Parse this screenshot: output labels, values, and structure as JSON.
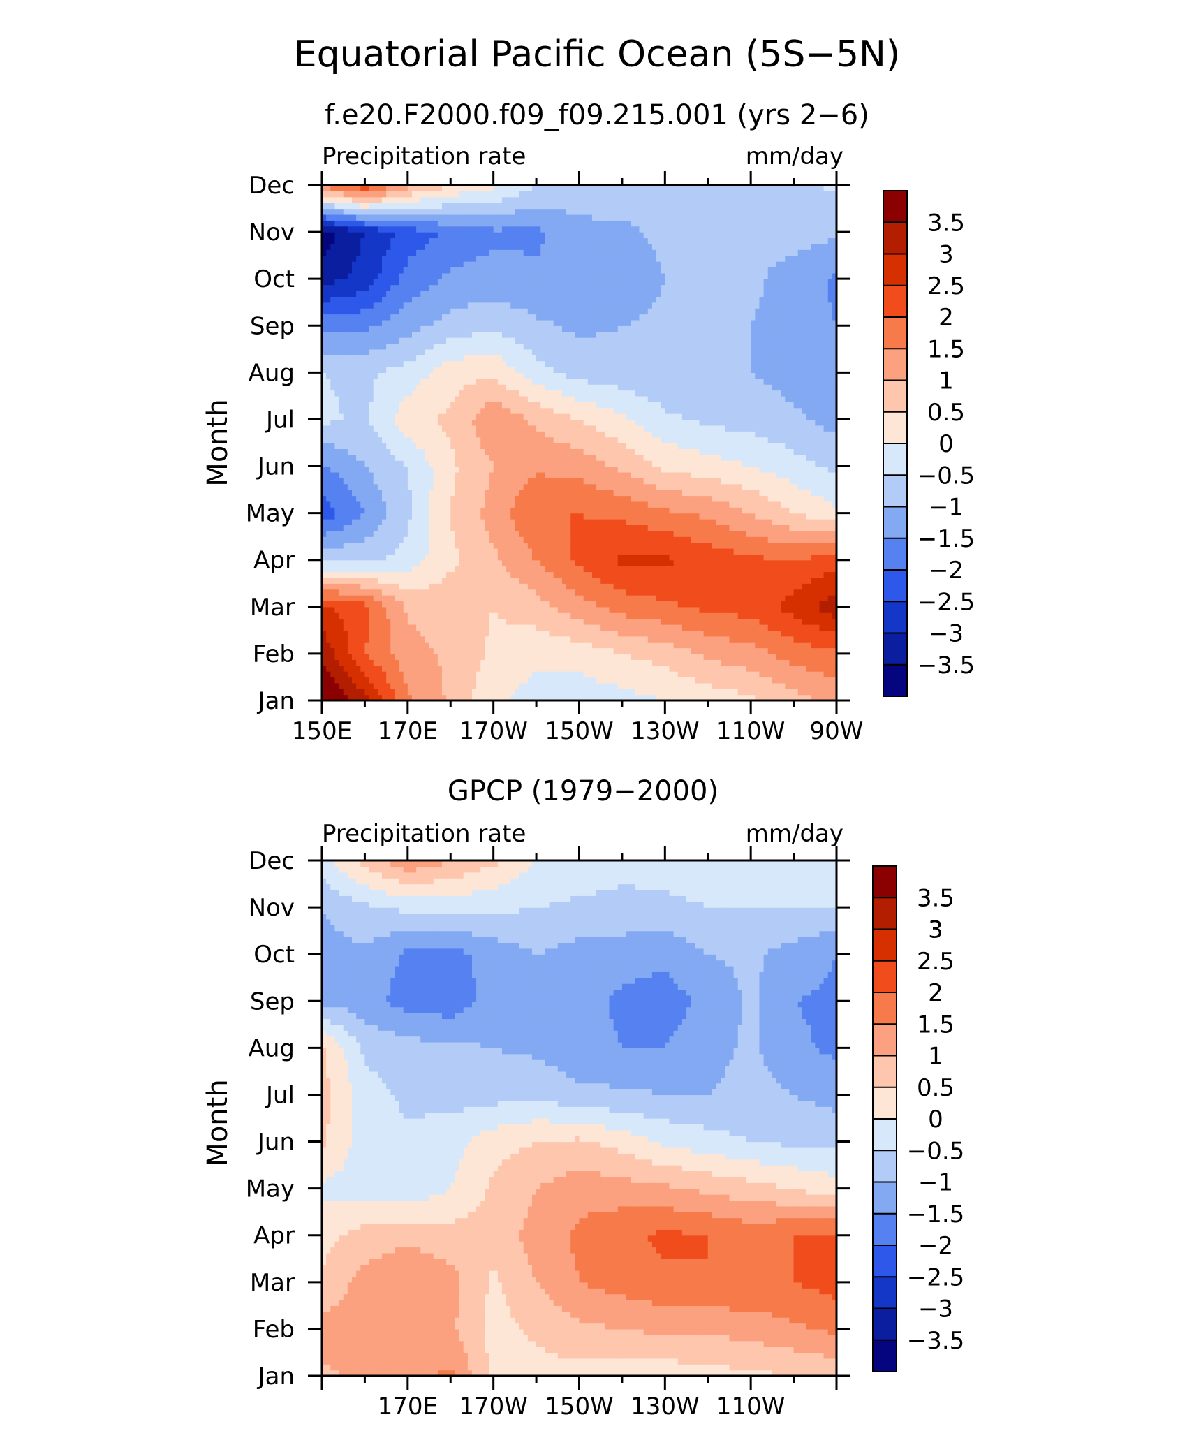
{
  "figure": {
    "title": "Equatorial Pacific Ocean (5S−5N)"
  },
  "colorbar": {
    "labels": [
      "3.5",
      "3",
      "2.5",
      "2",
      "1.5",
      "1",
      "0.5",
      "0",
      "−0.5",
      "−1",
      "−1.5",
      "−2",
      "−2.5",
      "−3",
      "−3.5"
    ],
    "colors": [
      "#8b0000",
      "#b31e00",
      "#d63000",
      "#f04c1c",
      "#f77a4a",
      "#fba17f",
      "#fdc6ad",
      "#fde6d6",
      "#d8e8fb",
      "#b2ccf7",
      "#83a9f3",
      "#5582f0",
      "#2d58ea",
      "#1437c8",
      "#0b1ea0",
      "#05057f"
    ]
  },
  "chart_data": [
    {
      "type": "heatmap",
      "title": "f.e20.F2000.f09_f09.215.001 (yrs 2−6)",
      "left_label": "Precipitation rate",
      "right_label": "mm/day",
      "ylabel": "Month",
      "xlabel": "",
      "x_tick_labels": [
        "150E",
        "170E",
        "170W",
        "150W",
        "130W",
        "110W",
        "90W"
      ],
      "x_tick_lons": [
        150,
        170,
        190,
        210,
        230,
        250,
        270
      ],
      "y_tick_labels": [
        "Jan",
        "Feb",
        "Mar",
        "Apr",
        "May",
        "Jun",
        "Jul",
        "Aug",
        "Sep",
        "Oct",
        "Nov",
        "Dec"
      ],
      "xlim": [
        150,
        270
      ],
      "ylim": [
        1,
        12
      ],
      "levels": [
        -3.5,
        -3,
        -2.5,
        -2,
        -1.5,
        -1,
        -0.5,
        0,
        0.5,
        1,
        1.5,
        2,
        2.5,
        3,
        3.5
      ],
      "grid_lons": [
        150,
        160,
        170,
        180,
        190,
        200,
        210,
        220,
        230,
        240,
        250,
        260,
        270
      ],
      "values": [
        [
          4.2,
          3.2,
          1.6,
          0.9,
          0.1,
          -0.2,
          -0.3,
          -0.2,
          0.0,
          0.2,
          0.4,
          0.8,
          1.2
        ],
        [
          3.4,
          2.0,
          1.2,
          0.9,
          0.4,
          0.1,
          0.2,
          0.5,
          0.7,
          1.1,
          1.3,
          1.7,
          1.9
        ],
        [
          2.6,
          2.2,
          0.9,
          0.8,
          0.5,
          0.8,
          1.3,
          1.7,
          1.9,
          2.1,
          2.2,
          2.7,
          3.3
        ],
        [
          -0.6,
          -0.6,
          -0.3,
          0.4,
          0.9,
          1.5,
          2.1,
          2.6,
          2.6,
          2.3,
          2.1,
          2.0,
          2.3
        ],
        [
          -2.3,
          -1.5,
          -0.6,
          0.5,
          1.2,
          2.0,
          2.0,
          1.9,
          1.6,
          1.4,
          1.0,
          0.5,
          0.1
        ],
        [
          -1.6,
          -1.0,
          -0.5,
          0.4,
          1.0,
          1.4,
          1.3,
          0.9,
          0.4,
          0.2,
          0.0,
          -0.3,
          -0.6
        ],
        [
          -0.4,
          -0.6,
          0.3,
          0.6,
          1.4,
          0.9,
          0.5,
          0.1,
          -0.4,
          -0.6,
          -0.7,
          -0.9,
          -1.2
        ],
        [
          -0.5,
          -0.6,
          -0.3,
          0.3,
          0.4,
          -0.3,
          -0.7,
          -0.8,
          -0.9,
          -0.9,
          -1.0,
          -1.2,
          -1.3
        ],
        [
          -1.7,
          -1.6,
          -1.2,
          -0.8,
          -0.6,
          -0.9,
          -1.1,
          -1.0,
          -0.9,
          -0.9,
          -1.0,
          -1.2,
          -1.5
        ],
        [
          -3.2,
          -2.8,
          -1.8,
          -1.4,
          -1.3,
          -1.4,
          -1.4,
          -1.3,
          -1.0,
          -0.9,
          -0.9,
          -1.2,
          -1.6
        ],
        [
          -3.8,
          -3.0,
          -2.3,
          -1.9,
          -1.6,
          -1.6,
          -1.2,
          -1.1,
          -0.9,
          -0.8,
          -0.9,
          -0.8,
          -0.9
        ],
        [
          1.7,
          2.4,
          1.2,
          0.5,
          0.1,
          -0.5,
          -0.6,
          -0.7,
          -0.8,
          -0.7,
          -0.8,
          -0.7,
          -0.4
        ]
      ]
    },
    {
      "type": "heatmap",
      "title": "GPCP (1979−2000)",
      "left_label": "Precipitation rate",
      "right_label": "mm/day",
      "ylabel": "Month",
      "xlabel": "",
      "x_tick_labels": [
        "170E",
        "170W",
        "150W",
        "130W",
        "110W"
      ],
      "x_tick_lons": [
        170,
        190,
        210,
        230,
        250
      ],
      "y_tick_labels": [
        "Jan",
        "Feb",
        "Mar",
        "Apr",
        "May",
        "Jun",
        "Jul",
        "Aug",
        "Sep",
        "Oct",
        "Nov",
        "Dec"
      ],
      "xlim": [
        150,
        270
      ],
      "ylim": [
        1,
        12
      ],
      "levels": [
        -3.5,
        -3,
        -2.5,
        -2,
        -1.5,
        -1,
        -0.5,
        0,
        0.5,
        1,
        1.5,
        2,
        2.5,
        3,
        3.5
      ],
      "grid_lons": [
        150,
        160,
        170,
        180,
        190,
        200,
        210,
        220,
        230,
        240,
        250,
        260,
        270
      ],
      "values": [
        [
          0.9,
          1.1,
          1.3,
          1.6,
          0.4,
          0.3,
          0.3,
          0.2,
          0.2,
          0.3,
          0.4,
          0.5,
          0.6
        ],
        [
          1.2,
          1.3,
          1.2,
          1.1,
          0.3,
          0.6,
          0.9,
          1.0,
          1.1,
          1.1,
          1.2,
          1.4,
          1.6
        ],
        [
          0.6,
          1.2,
          1.4,
          1.2,
          0.4,
          1.0,
          1.5,
          1.7,
          1.9,
          2.0,
          1.9,
          2.0,
          2.2
        ],
        [
          0.3,
          0.7,
          0.9,
          0.7,
          0.7,
          1.2,
          1.6,
          1.9,
          2.1,
          2.0,
          1.8,
          2.0,
          2.1
        ],
        [
          -0.1,
          -0.2,
          -0.4,
          0.0,
          0.6,
          1.0,
          1.3,
          1.2,
          1.1,
          0.9,
          0.7,
          0.5,
          0.2
        ],
        [
          0.6,
          -0.3,
          -0.4,
          -0.2,
          0.3,
          0.5,
          0.6,
          0.3,
          -0.1,
          -0.3,
          -0.5,
          -0.6,
          -0.6
        ],
        [
          0.7,
          -0.3,
          -0.6,
          -0.7,
          -0.7,
          -0.6,
          -0.9,
          -0.9,
          -1.0,
          -1.0,
          -0.8,
          -1.0,
          -1.2
        ],
        [
          0.6,
          -0.6,
          -0.8,
          -0.9,
          -1.0,
          -1.1,
          -1.3,
          -1.5,
          -1.5,
          -1.2,
          -0.9,
          -1.4,
          -1.6
        ],
        [
          -1.1,
          -1.3,
          -1.7,
          -1.8,
          -1.3,
          -1.1,
          -1.3,
          -1.6,
          -1.7,
          -1.4,
          -0.9,
          -1.5,
          -1.6
        ],
        [
          -1.2,
          -1.1,
          -1.6,
          -1.7,
          -1.3,
          -1.0,
          -1.2,
          -1.3,
          -1.4,
          -1.0,
          -0.9,
          -1.2,
          -1.5
        ],
        [
          -1.0,
          -0.6,
          -0.4,
          -0.3,
          -0.4,
          -0.5,
          -0.6,
          -0.6,
          -0.6,
          -0.5,
          -0.5,
          -0.5,
          -0.5
        ],
        [
          -0.2,
          0.7,
          1.4,
          1.0,
          0.6,
          0.0,
          -0.2,
          -0.4,
          -0.3,
          -0.3,
          -0.4,
          -0.5,
          -0.4
        ]
      ]
    }
  ]
}
